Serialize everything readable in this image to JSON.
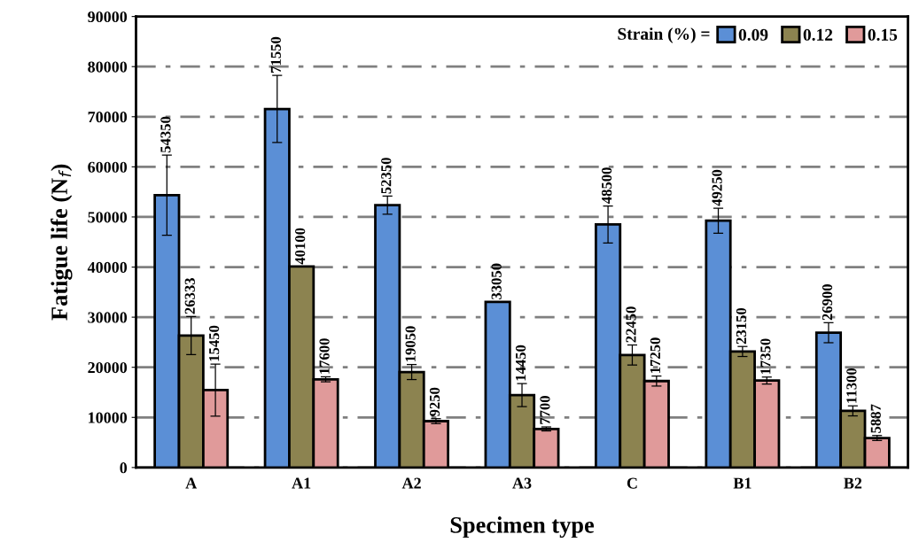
{
  "chart_data": {
    "type": "bar",
    "xlabel": "Specimen type",
    "ylabel": "Fatigue life (N$_{f}$)",
    "legend_title": "Strain (%) =",
    "categories": [
      "A",
      "A1",
      "A2",
      "A3",
      "C",
      "B1",
      "B2"
    ],
    "series": [
      {
        "name": "0.09",
        "color": "#5b8fd6",
        "values": [
          54350,
          71550,
          52350,
          33050,
          48500,
          49250,
          26900
        ],
        "errors": [
          8000,
          6700,
          1800,
          null,
          3700,
          2500,
          2000
        ]
      },
      {
        "name": "0.12",
        "color": "#8c8350",
        "values": [
          26333,
          40100,
          19050,
          14450,
          22450,
          23150,
          11300
        ],
        "errors": [
          3800,
          null,
          1500,
          2300,
          2000,
          1000,
          1000
        ]
      },
      {
        "name": "0.15",
        "color": "#e09a9a",
        "values": [
          15450,
          17600,
          9250,
          7700,
          17250,
          17350,
          5887
        ],
        "errors": [
          5200,
          500,
          500,
          400,
          1000,
          700,
          500
        ]
      }
    ],
    "ylim": [
      0,
      90000
    ],
    "yticks": [
      0,
      10000,
      20000,
      30000,
      40000,
      50000,
      60000,
      70000,
      80000,
      90000
    ],
    "grid": "y",
    "legend": "top right",
    "data_labels": true
  }
}
